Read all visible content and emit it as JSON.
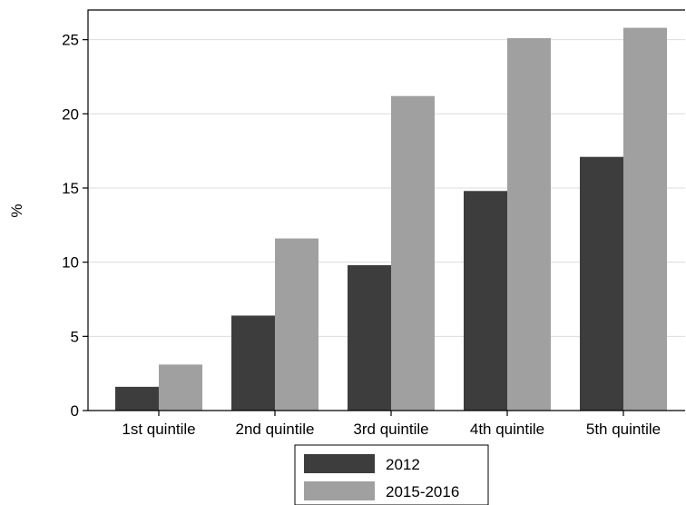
{
  "chart_data": {
    "type": "bar",
    "categories": [
      "1st quintile",
      "2nd quintile",
      "3rd quintile",
      "4th quintile",
      "5th quintile"
    ],
    "series": [
      {
        "name": "2012",
        "values": [
          1.6,
          6.4,
          9.8,
          14.8,
          17.1
        ]
      },
      {
        "name": "2015-2016",
        "values": [
          3.1,
          11.6,
          21.2,
          25.1,
          25.8
        ]
      }
    ],
    "title": "",
    "xlabel": "",
    "ylabel": "%",
    "ylim": [
      0,
      27
    ],
    "yticks": [
      0,
      5,
      10,
      15,
      20,
      25
    ],
    "ytick_labels": [
      "0",
      "5",
      "10",
      "15",
      "20",
      "25"
    ],
    "grid": true,
    "legend_position": "bottom",
    "colors": {
      "2012": "#3d3d3d",
      "2015-2016": "#a0a0a0",
      "grid": "#dcdcdc",
      "frame": "#000000"
    }
  }
}
